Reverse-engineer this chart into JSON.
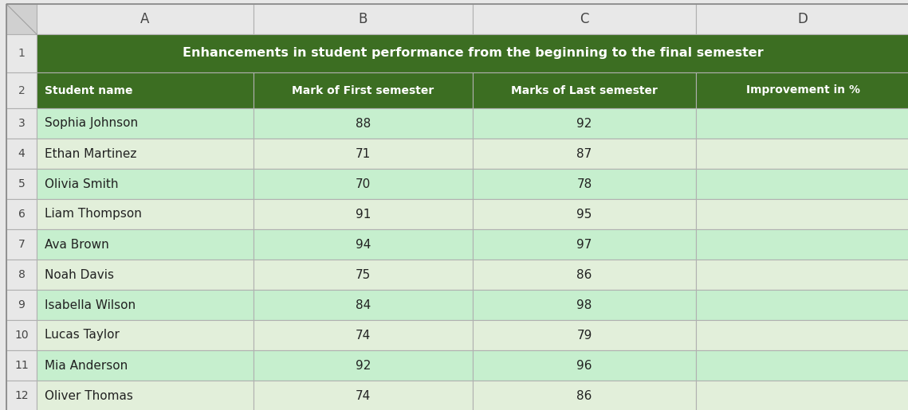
{
  "title": "Enhancements in student performance from the beginning to the final semester",
  "headers": [
    "Student name",
    "Mark of First semester",
    "Marks of Last semester",
    "Improvement in %"
  ],
  "col_letters": [
    "A",
    "B",
    "C",
    "D"
  ],
  "rows": [
    [
      "Sophia Johnson",
      "88",
      "92",
      ""
    ],
    [
      "Ethan Martinez",
      "71",
      "87",
      ""
    ],
    [
      "Olivia Smith",
      "70",
      "78",
      ""
    ],
    [
      "Liam Thompson",
      "91",
      "95",
      ""
    ],
    [
      "Ava Brown",
      "94",
      "97",
      ""
    ],
    [
      "Noah Davis",
      "75",
      "86",
      ""
    ],
    [
      "Isabella Wilson",
      "84",
      "98",
      ""
    ],
    [
      "Lucas Taylor",
      "74",
      "79",
      ""
    ],
    [
      "Mia Anderson",
      "92",
      "96",
      ""
    ],
    [
      "Oliver Thomas",
      "74",
      "86",
      ""
    ]
  ],
  "header_bg": "#3C6E22",
  "header_text": "#FFFFFF",
  "title_bg": "#3C6E22",
  "title_text": "#FFFFFF",
  "row_bg_even": "#C6EFCE",
  "row_bg_odd": "#E2EFDA",
  "row_num_bg": "#E8E8E8",
  "col_letter_bg": "#E8E8E8",
  "grid_color": "#B0B0B0",
  "fig_bg": "#E8E8E8",
  "corner_bg": "#D0D0D0"
}
